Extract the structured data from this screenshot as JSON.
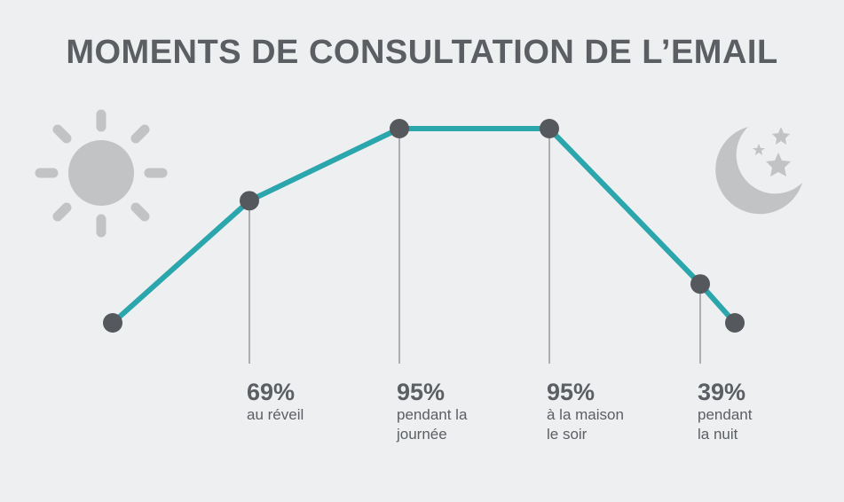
{
  "chart_data": {
    "type": "line",
    "title": "MOMENTS DE CONSULTATION DE L’EMAIL",
    "xlabel": "",
    "ylabel": "",
    "grid": false,
    "points": [
      {
        "value": 25,
        "label": "",
        "caption": ""
      },
      {
        "value": 69,
        "label": "69%",
        "caption": "au réveil"
      },
      {
        "value": 95,
        "label": "95%",
        "caption": "pendant la\njournée"
      },
      {
        "value": 95,
        "label": "95%",
        "caption": "à la maison\nle soir"
      },
      {
        "value": 39,
        "label": "39%",
        "caption": "pendant\nla nuit"
      },
      {
        "value": 25,
        "label": "",
        "caption": ""
      }
    ]
  },
  "colors": {
    "line": "#2aa6ac",
    "marker": "#55585d",
    "text": "#5b5e63",
    "icon": "#c2c3c5",
    "background": "#eeeff0"
  },
  "icons": {
    "left": "sun-icon",
    "right": "moon-stars-icon"
  }
}
